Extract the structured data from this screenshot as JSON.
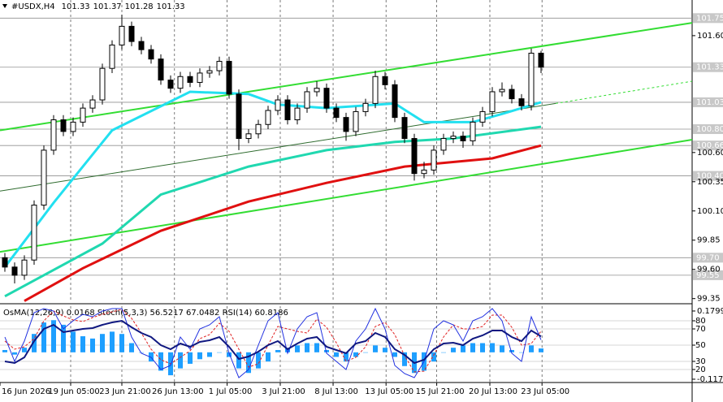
{
  "chart_data": {
    "type": "candlestick",
    "title": "#USDX,H4",
    "quote": [
      101.33,
      101.37,
      101.28,
      101.33
    ],
    "xlim": [
      -0.5,
      70.5
    ],
    "ylim": [
      99.32,
      101.905
    ],
    "open": [
      99.7,
      99.62,
      99.55,
      99.68,
      100.15,
      100.62,
      100.88,
      100.78,
      100.86,
      100.98,
      101.05,
      101.32,
      101.52,
      101.68,
      101.55,
      101.48,
      101.4,
      101.22,
      101.15,
      101.25,
      101.2,
      101.28,
      101.3,
      101.38,
      101.1,
      100.72,
      100.76,
      100.84,
      100.96,
      101.05,
      100.88,
      100.98,
      101.12,
      101.15,
      100.98,
      100.9,
      100.78,
      100.95,
      101.02,
      101.25,
      101.18,
      100.9,
      100.72,
      100.42,
      100.45,
      100.62,
      100.72,
      100.74,
      100.7,
      100.86,
      100.95,
      101.12,
      101.14,
      101.06,
      101.0,
      101.45
    ],
    "high": [
      99.74,
      99.66,
      99.72,
      100.19,
      100.66,
      100.92,
      100.92,
      100.9,
      101.02,
      101.09,
      101.36,
      101.56,
      101.78,
      101.72,
      101.59,
      101.52,
      101.44,
      101.26,
      101.29,
      101.29,
      101.32,
      101.34,
      101.42,
      101.42,
      101.14,
      100.8,
      100.88,
      101.0,
      101.09,
      101.09,
      101.02,
      101.16,
      101.21,
      101.19,
      101.02,
      100.94,
      100.99,
      101.06,
      101.3,
      101.29,
      101.22,
      100.94,
      100.76,
      100.52,
      100.66,
      100.76,
      100.78,
      100.78,
      100.9,
      100.99,
      101.16,
      101.2,
      101.18,
      101.1,
      101.49,
      101.47
    ],
    "low": [
      99.58,
      99.48,
      99.51,
      99.64,
      100.11,
      100.58,
      100.74,
      100.74,
      100.82,
      100.94,
      101.01,
      101.28,
      101.48,
      101.51,
      101.44,
      101.36,
      101.18,
      101.11,
      101.11,
      101.16,
      101.16,
      101.24,
      101.26,
      101.06,
      100.62,
      100.68,
      100.72,
      100.8,
      100.92,
      100.84,
      100.84,
      100.94,
      101.08,
      100.94,
      100.86,
      100.7,
      100.74,
      100.91,
      100.98,
      101.14,
      100.86,
      100.68,
      100.36,
      100.38,
      100.41,
      100.58,
      100.68,
      100.64,
      100.66,
      100.82,
      100.91,
      101.08,
      101.02,
      100.96,
      100.96,
      101.28
    ],
    "close": [
      99.62,
      99.55,
      99.68,
      100.15,
      100.62,
      100.88,
      100.78,
      100.86,
      100.98,
      101.05,
      101.32,
      101.52,
      101.68,
      101.55,
      101.48,
      101.4,
      101.22,
      101.15,
      101.25,
      101.2,
      101.28,
      101.3,
      101.38,
      101.1,
      100.72,
      100.76,
      100.84,
      100.96,
      101.05,
      100.88,
      100.98,
      101.12,
      101.15,
      100.98,
      100.9,
      100.78,
      100.95,
      101.02,
      101.25,
      101.18,
      100.9,
      100.72,
      100.42,
      100.45,
      100.62,
      100.72,
      100.74,
      100.7,
      100.86,
      100.95,
      101.12,
      101.14,
      101.06,
      101.0,
      101.45,
      101.33
    ],
    "xticks": [
      {
        "value": -0.5,
        "label": "16 Jun 2026"
      },
      {
        "value": 6.75,
        "label": "19 Jun 05:00"
      },
      {
        "value": 12,
        "label": "23 Jun 21:00"
      },
      {
        "value": 17.4,
        "label": "26 Jun 13:00"
      },
      {
        "value": 22.8,
        "label": "1 Jul 05:00"
      },
      {
        "value": 28.25,
        "label": "3 Jul 21:00"
      },
      {
        "value": 33.67,
        "label": "8 Jul 13:00"
      },
      {
        "value": 39.1,
        "label": "13 Jul 05:00"
      },
      {
        "value": 44.3,
        "label": "15 Jul 21:00"
      },
      {
        "value": 49.75,
        "label": "20 Jul 13:00"
      },
      {
        "value": 55.1,
        "label": "23 Jul 05:00"
      }
    ],
    "yticks": [
      {
        "value": 101.6,
        "label": "101.60"
      },
      {
        "value": 100.6,
        "label": "100.60"
      },
      100.35,
      {
        "value": 100.1,
        "label": "100.10"
      },
      99.85,
      {
        "value": 99.6,
        "label": "99.60"
      },
      99.35
    ],
    "levels": [
      101.75,
      101.33,
      101.03,
      {
        "value": 100.8,
        "label": "100.80"
      },
      100.66,
      {
        "value": 100.4,
        "label": "100.40"
      },
      {
        "value": 99.7,
        "label": "99.70"
      },
      99.55
    ],
    "lines": [
      {
        "color": "#22e0f0",
        "x": [
          0,
          5,
          11,
          19,
          25,
          28,
          33,
          40,
          43,
          48,
          51,
          55
        ],
        "values": [
          99.62,
          100.17,
          100.79,
          101.12,
          101.1,
          101.01,
          100.98,
          101.02,
          100.86,
          100.86,
          100.93,
          101.03
        ]
      },
      {
        "color": "#20d8b0",
        "x": [
          0,
          10,
          16,
          25,
          33,
          40,
          46,
          55
        ],
        "values": [
          99.37,
          99.82,
          100.24,
          100.48,
          100.62,
          100.69,
          100.72,
          100.82
        ]
      },
      {
        "color": "#e01010",
        "x": [
          2,
          8,
          16,
          25,
          33,
          41,
          50,
          55
        ],
        "values": [
          99.33,
          99.61,
          99.93,
          100.18,
          100.34,
          100.48,
          100.55,
          100.66
        ]
      }
    ],
    "trendlines": [
      {
        "color": "#33dd33",
        "x": [
          -0.5,
          70.5
        ],
        "values": [
          100.79,
          101.71
        ]
      },
      {
        "color": "#33dd33",
        "x": [
          -0.5,
          70.5
        ],
        "values": [
          99.75,
          100.71
        ]
      },
      {
        "color": "#2e6b2e",
        "x": [
          -0.5,
          56.5
        ],
        "values": [
          100.27,
          101.02
        ]
      },
      {
        "color": "#33dd33",
        "dashed": true,
        "x": [
          56.5,
          70.5
        ],
        "values": [
          101.02,
          101.21
        ]
      }
    ],
    "indicator": {
      "label": "OsMA(12,26,9) 0.0168 Stoch(5,3,3) 56.5217 67.0482 RSI(14) 60.8186",
      "osma": [
        0.01,
        -0.01,
        0.02,
        0.08,
        0.13,
        0.14,
        0.12,
        0.09,
        0.07,
        0.06,
        0.08,
        0.09,
        0.08,
        0.04,
        0.0,
        -0.04,
        -0.08,
        -0.1,
        -0.07,
        -0.05,
        -0.03,
        -0.02,
        0.0,
        -0.02,
        -0.07,
        -0.09,
        -0.07,
        -0.04,
        0.01,
        0.02,
        0.03,
        0.04,
        0.04,
        0.01,
        -0.02,
        -0.04,
        -0.02,
        0.0,
        0.03,
        0.02,
        -0.02,
        -0.06,
        -0.09,
        -0.08,
        -0.04,
        0.0,
        0.02,
        0.03,
        0.04,
        0.04,
        0.04,
        0.03,
        0.01,
        0.0,
        0.03,
        0.0168
      ],
      "osma_color": "#1e9fff",
      "osma_lim": [
        -0.128,
        0.201
      ],
      "osma_ticks": [
        0.1799,
        -0.1172
      ],
      "stoch_k": [
        60,
        30,
        55,
        90,
        95,
        92,
        70,
        80,
        88,
        85,
        92,
        95,
        95,
        60,
        40,
        35,
        20,
        25,
        60,
        45,
        70,
        75,
        85,
        40,
        10,
        20,
        50,
        80,
        90,
        40,
        70,
        85,
        90,
        40,
        30,
        20,
        55,
        70,
        95,
        70,
        25,
        15,
        10,
        30,
        70,
        80,
        75,
        55,
        80,
        85,
        95,
        80,
        40,
        30,
        85,
        56.52
      ],
      "stoch_k_color": "#2030e0",
      "stoch_d": [
        55,
        45,
        48,
        58,
        80,
        92,
        86,
        81,
        79,
        84,
        88,
        91,
        94,
        83,
        65,
        45,
        32,
        27,
        35,
        43,
        58,
        63,
        77,
        67,
        45,
        23,
        27,
        50,
        73,
        70,
        67,
        65,
        82,
        72,
        53,
        30,
        35,
        48,
        73,
        78,
        63,
        37,
        17,
        18,
        38,
        60,
        75,
        70,
        70,
        73,
        87,
        87,
        72,
        50,
        52,
        67.05
      ],
      "stoch_d_color": "#e02020",
      "rsi": [
        30,
        28,
        35,
        55,
        70,
        75,
        66,
        68,
        70,
        71,
        75,
        78,
        80,
        72,
        65,
        60,
        50,
        45,
        52,
        48,
        54,
        56,
        60,
        48,
        33,
        36,
        42,
        50,
        55,
        45,
        52,
        58,
        60,
        48,
        44,
        40,
        52,
        55,
        65,
        60,
        45,
        38,
        28,
        32,
        45,
        52,
        53,
        50,
        58,
        62,
        68,
        68,
        60,
        55,
        68,
        60.82
      ],
      "rsi_color": "#101880",
      "osc_lim": [
        5,
        98
      ],
      "osc_ticks": [
        80,
        70,
        50,
        30,
        20
      ]
    }
  }
}
